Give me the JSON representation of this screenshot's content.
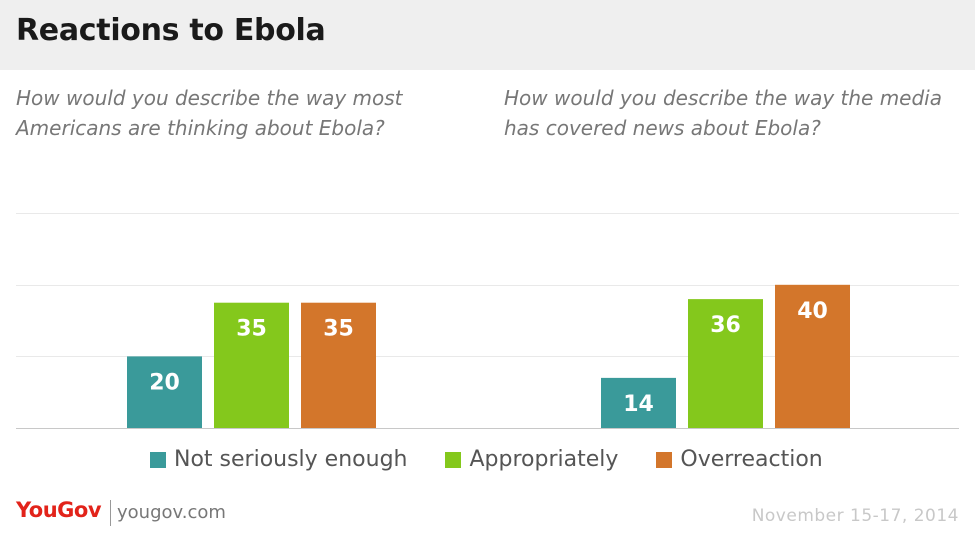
{
  "header": {
    "title": "Reactions to Ebola"
  },
  "footer": {
    "logo_text": "YouGov",
    "site": "yougov.com",
    "date": "November 15-17, 2014"
  },
  "colors": {
    "not_seriously_enough": "#3a9a9a",
    "appropriately": "#84c81c",
    "overreaction": "#d3762b"
  },
  "legend": {
    "items": [
      {
        "label": "Not seriously enough",
        "color": "#3a9a9a"
      },
      {
        "label": "Appropriately",
        "color": "#84c81c"
      },
      {
        "label": "Overreaction",
        "color": "#d3762b"
      }
    ]
  },
  "chart_data": [
    {
      "type": "bar",
      "title": "How would you describe the way most Americans are thinking about Ebola?",
      "categories": [
        "Not seriously enough",
        "Appropriately",
        "Overreaction"
      ],
      "values": [
        20,
        35,
        35
      ],
      "ylim": [
        0,
        60
      ],
      "grid": true
    },
    {
      "type": "bar",
      "title": "How would you describe the way the media has covered news about Ebola?",
      "categories": [
        "Not seriously enough",
        "Appropriately",
        "Overreaction"
      ],
      "values": [
        14,
        36,
        40
      ],
      "ylim": [
        0,
        60
      ],
      "grid": true
    }
  ]
}
